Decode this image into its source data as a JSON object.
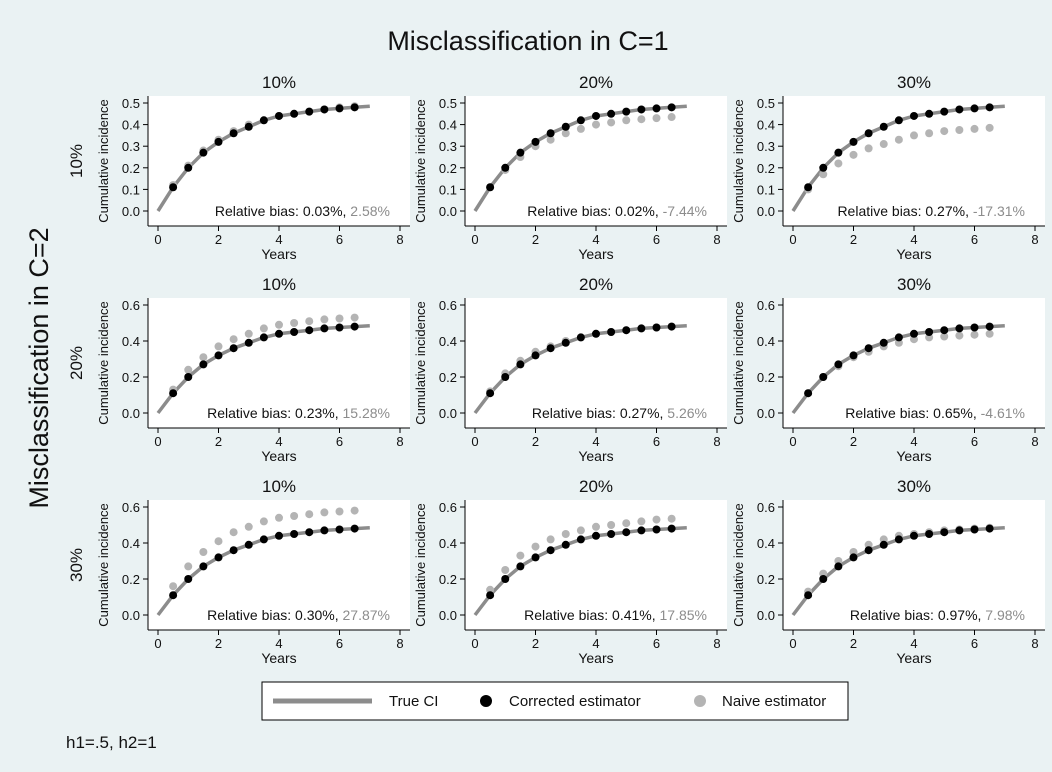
{
  "figure": {
    "title": "Misclassification in C=1",
    "row_title": "Misclassification in C=2",
    "note": "h1=.5, h2=1",
    "colors": {
      "background": "#eaf2f3",
      "plot_background": "#ffffff",
      "true_ci": "#8c8c8c",
      "corrected": "#000000",
      "naive": "#b4b4b4"
    },
    "legend": {
      "position": "bottom-center",
      "items": [
        {
          "label": "True CI",
          "kind": "line"
        },
        {
          "label": "Corrected estimator",
          "kind": "marker"
        },
        {
          "label": "Naive estimator",
          "kind": "marker"
        }
      ]
    }
  },
  "chart_data": [
    {
      "type": "line",
      "col_label": "10%",
      "row_label": "10%",
      "xlabel": "Years",
      "ylabel": "Cumulative incidence",
      "xlim": [
        0,
        8
      ],
      "ylim": [
        0,
        0.5
      ],
      "yticks": [
        0.0,
        0.1,
        0.2,
        0.3,
        0.4,
        0.5
      ],
      "xticks": [
        0,
        2,
        4,
        6,
        8
      ],
      "ytick_labels": [
        "0.0",
        "0.1",
        "0.2",
        "0.3",
        "0.4",
        "0.5"
      ],
      "bias_prefix": "Relative bias: ",
      "bias_corrected": "0.03%",
      "bias_naive": "2.58%",
      "true_ci": {
        "x": [
          0,
          0.5,
          1,
          1.5,
          2,
          2.5,
          3,
          3.5,
          4,
          4.5,
          5,
          5.5,
          6,
          6.5,
          7
        ],
        "y": [
          0,
          0.11,
          0.2,
          0.27,
          0.32,
          0.36,
          0.39,
          0.42,
          0.44,
          0.45,
          0.46,
          0.47,
          0.475,
          0.48,
          0.485
        ]
      },
      "corrected": {
        "x": [
          0.5,
          1,
          1.5,
          2,
          2.5,
          3,
          3.5,
          4,
          4.5,
          5,
          5.5,
          6,
          6.5
        ],
        "y": [
          0.11,
          0.2,
          0.27,
          0.32,
          0.36,
          0.39,
          0.42,
          0.44,
          0.45,
          0.46,
          0.47,
          0.475,
          0.48
        ]
      },
      "naive": {
        "x": [
          0.5,
          1,
          1.5,
          2,
          2.5,
          3,
          3.5,
          4,
          4.5,
          5,
          5.5,
          6,
          6.5
        ],
        "y": [
          0.12,
          0.21,
          0.28,
          0.33,
          0.37,
          0.4,
          0.42,
          0.44,
          0.45,
          0.46,
          0.47,
          0.48,
          0.485
        ]
      }
    },
    {
      "type": "line",
      "col_label": "20%",
      "row_label": "10%",
      "xlabel": "Years",
      "ylabel": "Cumulative incidence",
      "xlim": [
        0,
        8
      ],
      "ylim": [
        0,
        0.5
      ],
      "yticks": [
        0.0,
        0.1,
        0.2,
        0.3,
        0.4,
        0.5
      ],
      "xticks": [
        0,
        2,
        4,
        6,
        8
      ],
      "ytick_labels": [
        "0.0",
        "0.1",
        "0.2",
        "0.3",
        "0.4",
        "0.5"
      ],
      "bias_prefix": "Relative bias: ",
      "bias_corrected": "0.02%",
      "bias_naive": "-7.44%",
      "true_ci": {
        "x": [
          0,
          0.5,
          1,
          1.5,
          2,
          2.5,
          3,
          3.5,
          4,
          4.5,
          5,
          5.5,
          6,
          6.5,
          7
        ],
        "y": [
          0,
          0.11,
          0.2,
          0.27,
          0.32,
          0.36,
          0.39,
          0.42,
          0.44,
          0.45,
          0.46,
          0.47,
          0.475,
          0.48,
          0.485
        ]
      },
      "corrected": {
        "x": [
          0.5,
          1,
          1.5,
          2,
          2.5,
          3,
          3.5,
          4,
          4.5,
          5,
          5.5,
          6,
          6.5
        ],
        "y": [
          0.11,
          0.2,
          0.27,
          0.32,
          0.36,
          0.39,
          0.42,
          0.44,
          0.45,
          0.46,
          0.47,
          0.475,
          0.48
        ]
      },
      "naive": {
        "x": [
          0.5,
          1,
          1.5,
          2,
          2.5,
          3,
          3.5,
          4,
          4.5,
          5,
          5.5,
          6,
          6.5
        ],
        "y": [
          0.11,
          0.19,
          0.25,
          0.3,
          0.33,
          0.36,
          0.38,
          0.4,
          0.41,
          0.42,
          0.425,
          0.43,
          0.435
        ]
      }
    },
    {
      "type": "line",
      "col_label": "30%",
      "row_label": "10%",
      "xlabel": "Years",
      "ylabel": "Cumulative incidence",
      "xlim": [
        0,
        8
      ],
      "ylim": [
        0,
        0.5
      ],
      "yticks": [
        0.0,
        0.1,
        0.2,
        0.3,
        0.4,
        0.5
      ],
      "xticks": [
        0,
        2,
        4,
        6,
        8
      ],
      "ytick_labels": [
        "0.0",
        "0.1",
        "0.2",
        "0.3",
        "0.4",
        "0.5"
      ],
      "bias_prefix": "Relative bias: ",
      "bias_corrected": "0.27%",
      "bias_naive": "-17.31%",
      "true_ci": {
        "x": [
          0,
          0.5,
          1,
          1.5,
          2,
          2.5,
          3,
          3.5,
          4,
          4.5,
          5,
          5.5,
          6,
          6.5,
          7
        ],
        "y": [
          0,
          0.11,
          0.2,
          0.27,
          0.32,
          0.36,
          0.39,
          0.42,
          0.44,
          0.45,
          0.46,
          0.47,
          0.475,
          0.48,
          0.485
        ]
      },
      "corrected": {
        "x": [
          0.5,
          1,
          1.5,
          2,
          2.5,
          3,
          3.5,
          4,
          4.5,
          5,
          5.5,
          6,
          6.5
        ],
        "y": [
          0.11,
          0.2,
          0.27,
          0.32,
          0.36,
          0.39,
          0.42,
          0.44,
          0.45,
          0.46,
          0.47,
          0.475,
          0.48
        ]
      },
      "naive": {
        "x": [
          0.5,
          1,
          1.5,
          2,
          2.5,
          3,
          3.5,
          4,
          4.5,
          5,
          5.5,
          6,
          6.5
        ],
        "y": [
          0.1,
          0.17,
          0.22,
          0.26,
          0.29,
          0.31,
          0.33,
          0.35,
          0.36,
          0.37,
          0.375,
          0.38,
          0.385
        ]
      }
    },
    {
      "type": "line",
      "col_label": "10%",
      "row_label": "20%",
      "xlabel": "Years",
      "ylabel": "Cumulative incidence",
      "xlim": [
        0,
        8
      ],
      "ylim": [
        0,
        0.6
      ],
      "yticks": [
        0.0,
        0.2,
        0.4,
        0.6
      ],
      "xticks": [
        0,
        2,
        4,
        6,
        8
      ],
      "ytick_labels": [
        "0.0",
        "0.2",
        "0.4",
        "0.6"
      ],
      "bias_prefix": "Relative bias: ",
      "bias_corrected": "0.23%",
      "bias_naive": "15.28%",
      "true_ci": {
        "x": [
          0,
          0.5,
          1,
          1.5,
          2,
          2.5,
          3,
          3.5,
          4,
          4.5,
          5,
          5.5,
          6,
          6.5,
          7
        ],
        "y": [
          0,
          0.11,
          0.2,
          0.27,
          0.32,
          0.36,
          0.39,
          0.42,
          0.44,
          0.45,
          0.46,
          0.47,
          0.475,
          0.48,
          0.485
        ]
      },
      "corrected": {
        "x": [
          0.5,
          1,
          1.5,
          2,
          2.5,
          3,
          3.5,
          4,
          4.5,
          5,
          5.5,
          6,
          6.5
        ],
        "y": [
          0.11,
          0.2,
          0.27,
          0.32,
          0.36,
          0.39,
          0.42,
          0.44,
          0.45,
          0.46,
          0.47,
          0.475,
          0.48
        ]
      },
      "naive": {
        "x": [
          0.5,
          1,
          1.5,
          2,
          2.5,
          3,
          3.5,
          4,
          4.5,
          5,
          5.5,
          6,
          6.5
        ],
        "y": [
          0.13,
          0.24,
          0.31,
          0.37,
          0.41,
          0.44,
          0.47,
          0.49,
          0.5,
          0.51,
          0.52,
          0.525,
          0.53
        ]
      }
    },
    {
      "type": "line",
      "col_label": "20%",
      "row_label": "20%",
      "xlabel": "Years",
      "ylabel": "Cumulative incidence",
      "xlim": [
        0,
        8
      ],
      "ylim": [
        0,
        0.6
      ],
      "yticks": [
        0.0,
        0.2,
        0.4,
        0.6
      ],
      "xticks": [
        0,
        2,
        4,
        6,
        8
      ],
      "ytick_labels": [
        "0.0",
        "0.2",
        "0.4",
        "0.6"
      ],
      "bias_prefix": "Relative bias: ",
      "bias_corrected": "0.27%",
      "bias_naive": "5.26%",
      "true_ci": {
        "x": [
          0,
          0.5,
          1,
          1.5,
          2,
          2.5,
          3,
          3.5,
          4,
          4.5,
          5,
          5.5,
          6,
          6.5,
          7
        ],
        "y": [
          0,
          0.11,
          0.2,
          0.27,
          0.32,
          0.36,
          0.39,
          0.42,
          0.44,
          0.45,
          0.46,
          0.47,
          0.475,
          0.48,
          0.485
        ]
      },
      "corrected": {
        "x": [
          0.5,
          1,
          1.5,
          2,
          2.5,
          3,
          3.5,
          4,
          4.5,
          5,
          5.5,
          6,
          6.5
        ],
        "y": [
          0.11,
          0.2,
          0.27,
          0.32,
          0.36,
          0.39,
          0.42,
          0.44,
          0.45,
          0.46,
          0.47,
          0.475,
          0.48
        ]
      },
      "naive": {
        "x": [
          0.5,
          1,
          1.5,
          2,
          2.5,
          3,
          3.5,
          4,
          4.5,
          5,
          5.5,
          6,
          6.5
        ],
        "y": [
          0.12,
          0.22,
          0.29,
          0.34,
          0.37,
          0.4,
          0.42,
          0.44,
          0.45,
          0.46,
          0.47,
          0.475,
          0.48
        ]
      }
    },
    {
      "type": "line",
      "col_label": "30%",
      "row_label": "20%",
      "xlabel": "Years",
      "ylabel": "Cumulative incidence",
      "xlim": [
        0,
        8
      ],
      "ylim": [
        0,
        0.6
      ],
      "yticks": [
        0.0,
        0.2,
        0.4,
        0.6
      ],
      "xticks": [
        0,
        2,
        4,
        6,
        8
      ],
      "ytick_labels": [
        "0.0",
        "0.2",
        "0.4",
        "0.6"
      ],
      "bias_prefix": "Relative bias: ",
      "bias_corrected": "0.65%",
      "bias_naive": "-4.61%",
      "true_ci": {
        "x": [
          0,
          0.5,
          1,
          1.5,
          2,
          2.5,
          3,
          3.5,
          4,
          4.5,
          5,
          5.5,
          6,
          6.5,
          7
        ],
        "y": [
          0,
          0.11,
          0.2,
          0.27,
          0.32,
          0.36,
          0.39,
          0.42,
          0.44,
          0.45,
          0.46,
          0.47,
          0.475,
          0.48,
          0.485
        ]
      },
      "corrected": {
        "x": [
          0.5,
          1,
          1.5,
          2,
          2.5,
          3,
          3.5,
          4,
          4.5,
          5,
          5.5,
          6,
          6.5
        ],
        "y": [
          0.11,
          0.2,
          0.27,
          0.32,
          0.36,
          0.39,
          0.42,
          0.44,
          0.45,
          0.46,
          0.47,
          0.475,
          0.48
        ]
      },
      "naive": {
        "x": [
          0.5,
          1,
          1.5,
          2,
          2.5,
          3,
          3.5,
          4,
          4.5,
          5,
          5.5,
          6,
          6.5
        ],
        "y": [
          0.11,
          0.2,
          0.26,
          0.31,
          0.34,
          0.37,
          0.39,
          0.41,
          0.42,
          0.425,
          0.43,
          0.435,
          0.44
        ]
      }
    },
    {
      "type": "line",
      "col_label": "10%",
      "row_label": "30%",
      "xlabel": "Years",
      "ylabel": "Cumulative incidence",
      "xlim": [
        0,
        8
      ],
      "ylim": [
        0,
        0.6
      ],
      "yticks": [
        0.0,
        0.2,
        0.4,
        0.6
      ],
      "xticks": [
        0,
        2,
        4,
        6,
        8
      ],
      "ytick_labels": [
        "0.0",
        "0.2",
        "0.4",
        "0.6"
      ],
      "bias_prefix": "Relative bias: ",
      "bias_corrected": "0.30%",
      "bias_naive": "27.87%",
      "true_ci": {
        "x": [
          0,
          0.5,
          1,
          1.5,
          2,
          2.5,
          3,
          3.5,
          4,
          4.5,
          5,
          5.5,
          6,
          6.5,
          7
        ],
        "y": [
          0,
          0.11,
          0.2,
          0.27,
          0.32,
          0.36,
          0.39,
          0.42,
          0.44,
          0.45,
          0.46,
          0.47,
          0.475,
          0.48,
          0.485
        ]
      },
      "corrected": {
        "x": [
          0.5,
          1,
          1.5,
          2,
          2.5,
          3,
          3.5,
          4,
          4.5,
          5,
          5.5,
          6,
          6.5
        ],
        "y": [
          0.11,
          0.2,
          0.27,
          0.32,
          0.36,
          0.39,
          0.42,
          0.44,
          0.45,
          0.46,
          0.47,
          0.475,
          0.48
        ]
      },
      "naive": {
        "x": [
          0.5,
          1,
          1.5,
          2,
          2.5,
          3,
          3.5,
          4,
          4.5,
          5,
          5.5,
          6,
          6.5
        ],
        "y": [
          0.16,
          0.27,
          0.35,
          0.41,
          0.46,
          0.49,
          0.52,
          0.54,
          0.55,
          0.56,
          0.57,
          0.575,
          0.58
        ]
      }
    },
    {
      "type": "line",
      "col_label": "20%",
      "row_label": "30%",
      "xlabel": "Years",
      "ylabel": "Cumulative incidence",
      "xlim": [
        0,
        8
      ],
      "ylim": [
        0,
        0.6
      ],
      "yticks": [
        0.0,
        0.2,
        0.4,
        0.6
      ],
      "xticks": [
        0,
        2,
        4,
        6,
        8
      ],
      "ytick_labels": [
        "0.0",
        "0.2",
        "0.4",
        "0.6"
      ],
      "bias_prefix": "Relative bias: ",
      "bias_corrected": "0.41%",
      "bias_naive": "17.85%",
      "true_ci": {
        "x": [
          0,
          0.5,
          1,
          1.5,
          2,
          2.5,
          3,
          3.5,
          4,
          4.5,
          5,
          5.5,
          6,
          6.5,
          7
        ],
        "y": [
          0,
          0.11,
          0.2,
          0.27,
          0.32,
          0.36,
          0.39,
          0.42,
          0.44,
          0.45,
          0.46,
          0.47,
          0.475,
          0.48,
          0.485
        ]
      },
      "corrected": {
        "x": [
          0.5,
          1,
          1.5,
          2,
          2.5,
          3,
          3.5,
          4,
          4.5,
          5,
          5.5,
          6,
          6.5
        ],
        "y": [
          0.11,
          0.2,
          0.27,
          0.32,
          0.36,
          0.39,
          0.42,
          0.44,
          0.45,
          0.46,
          0.47,
          0.475,
          0.48
        ]
      },
      "naive": {
        "x": [
          0.5,
          1,
          1.5,
          2,
          2.5,
          3,
          3.5,
          4,
          4.5,
          5,
          5.5,
          6,
          6.5
        ],
        "y": [
          0.14,
          0.25,
          0.33,
          0.38,
          0.42,
          0.45,
          0.47,
          0.49,
          0.5,
          0.51,
          0.52,
          0.53,
          0.535
        ]
      }
    },
    {
      "type": "line",
      "col_label": "30%",
      "row_label": "30%",
      "xlabel": "Years",
      "ylabel": "Cumulative incidence",
      "xlim": [
        0,
        8
      ],
      "ylim": [
        0,
        0.6
      ],
      "yticks": [
        0.0,
        0.2,
        0.4,
        0.6
      ],
      "xticks": [
        0,
        2,
        4,
        6,
        8
      ],
      "ytick_labels": [
        "0.0",
        "0.2",
        "0.4",
        "0.6"
      ],
      "bias_prefix": "Relative bias: ",
      "bias_corrected": "0.97%",
      "bias_naive": "7.98%",
      "true_ci": {
        "x": [
          0,
          0.5,
          1,
          1.5,
          2,
          2.5,
          3,
          3.5,
          4,
          4.5,
          5,
          5.5,
          6,
          6.5,
          7
        ],
        "y": [
          0,
          0.11,
          0.2,
          0.27,
          0.32,
          0.36,
          0.39,
          0.42,
          0.44,
          0.45,
          0.46,
          0.47,
          0.475,
          0.48,
          0.485
        ]
      },
      "corrected": {
        "x": [
          0.5,
          1,
          1.5,
          2,
          2.5,
          3,
          3.5,
          4,
          4.5,
          5,
          5.5,
          6,
          6.5
        ],
        "y": [
          0.11,
          0.2,
          0.27,
          0.32,
          0.36,
          0.39,
          0.42,
          0.44,
          0.45,
          0.46,
          0.47,
          0.475,
          0.48
        ]
      },
      "naive": {
        "x": [
          0.5,
          1,
          1.5,
          2,
          2.5,
          3,
          3.5,
          4,
          4.5,
          5,
          5.5,
          6,
          6.5
        ],
        "y": [
          0.13,
          0.23,
          0.3,
          0.35,
          0.39,
          0.42,
          0.44,
          0.45,
          0.46,
          0.47,
          0.475,
          0.48,
          0.485
        ]
      }
    }
  ]
}
